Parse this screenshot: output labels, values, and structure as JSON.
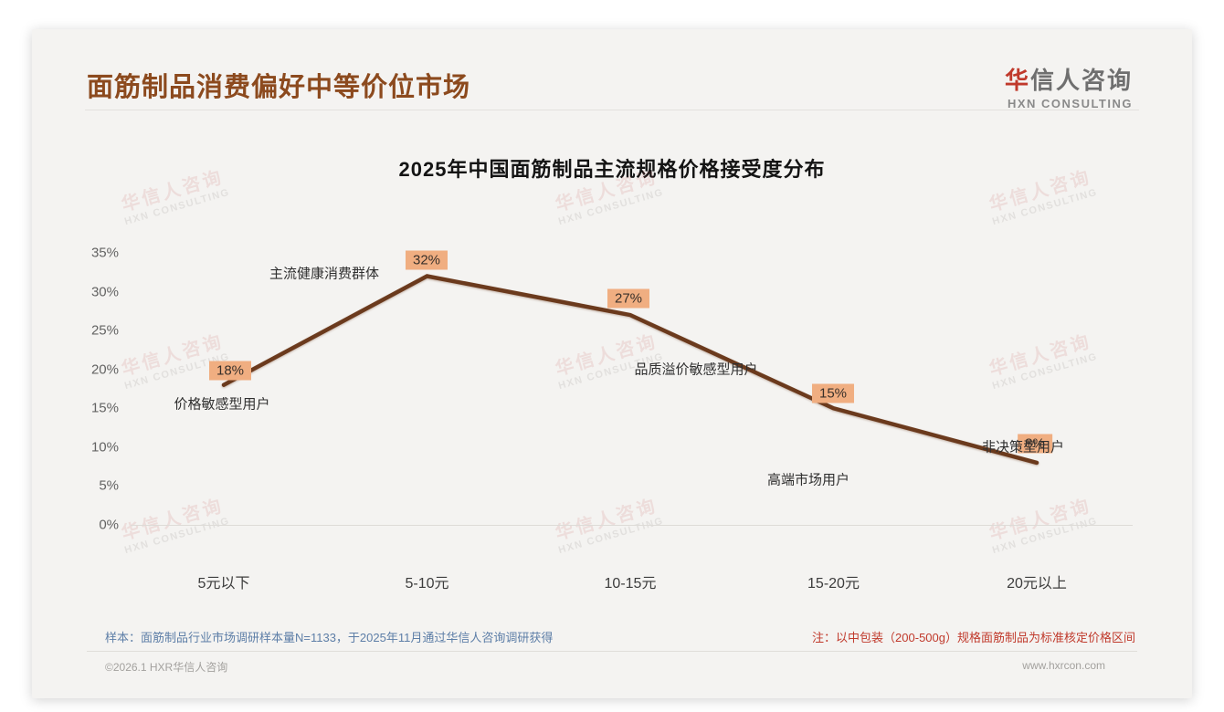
{
  "page": {
    "title": "面筋制品消费偏好中等价位市场",
    "logo": {
      "accent": "华",
      "rest": "信人咨询",
      "sub": "HXN CONSULTING"
    },
    "watermark": {
      "line1": "华信人咨询",
      "line2": "HXN CONSULTING"
    },
    "footer": {
      "sample_note": "样本：面筋制品行业市场调研样本量N=1133，于2025年11月通过华信人咨询调研获得",
      "price_note": "注：以中包装（200-500g）规格面筋制品为标准核定价格区间",
      "copyright": "©2026.1 HXR华信人咨询",
      "website": "www.hxrcon.com"
    },
    "colors": {
      "title_brown": "#8c4a1e",
      "accent_red": "#c0392b",
      "note_blue": "#5d7ea7"
    }
  },
  "chart_data": {
    "type": "line",
    "title": "2025年中国面筋制品主流规格价格接受度分布",
    "categories": [
      "5元以下",
      "5-10元",
      "10-15元",
      "15-20元",
      "20元以上"
    ],
    "values": [
      18,
      32,
      27,
      15,
      8
    ],
    "point_labels": [
      "18%",
      "32%",
      "27%",
      "15%",
      "8%"
    ],
    "annotations": [
      "价格敏感型用户",
      "主流健康消费群体",
      "品质溢价敏感型用户",
      "高端市场用户",
      "非决策型用户"
    ],
    "yticks": [
      "35%",
      "30%",
      "25%",
      "20%",
      "15%",
      "10%",
      "5%",
      "0%"
    ],
    "ylim": [
      0,
      35
    ],
    "grid": "off",
    "legend": "none",
    "xlabel": "",
    "ylabel": "",
    "line_color": "#6b3a1d",
    "label_bg": "#f0ae81"
  }
}
